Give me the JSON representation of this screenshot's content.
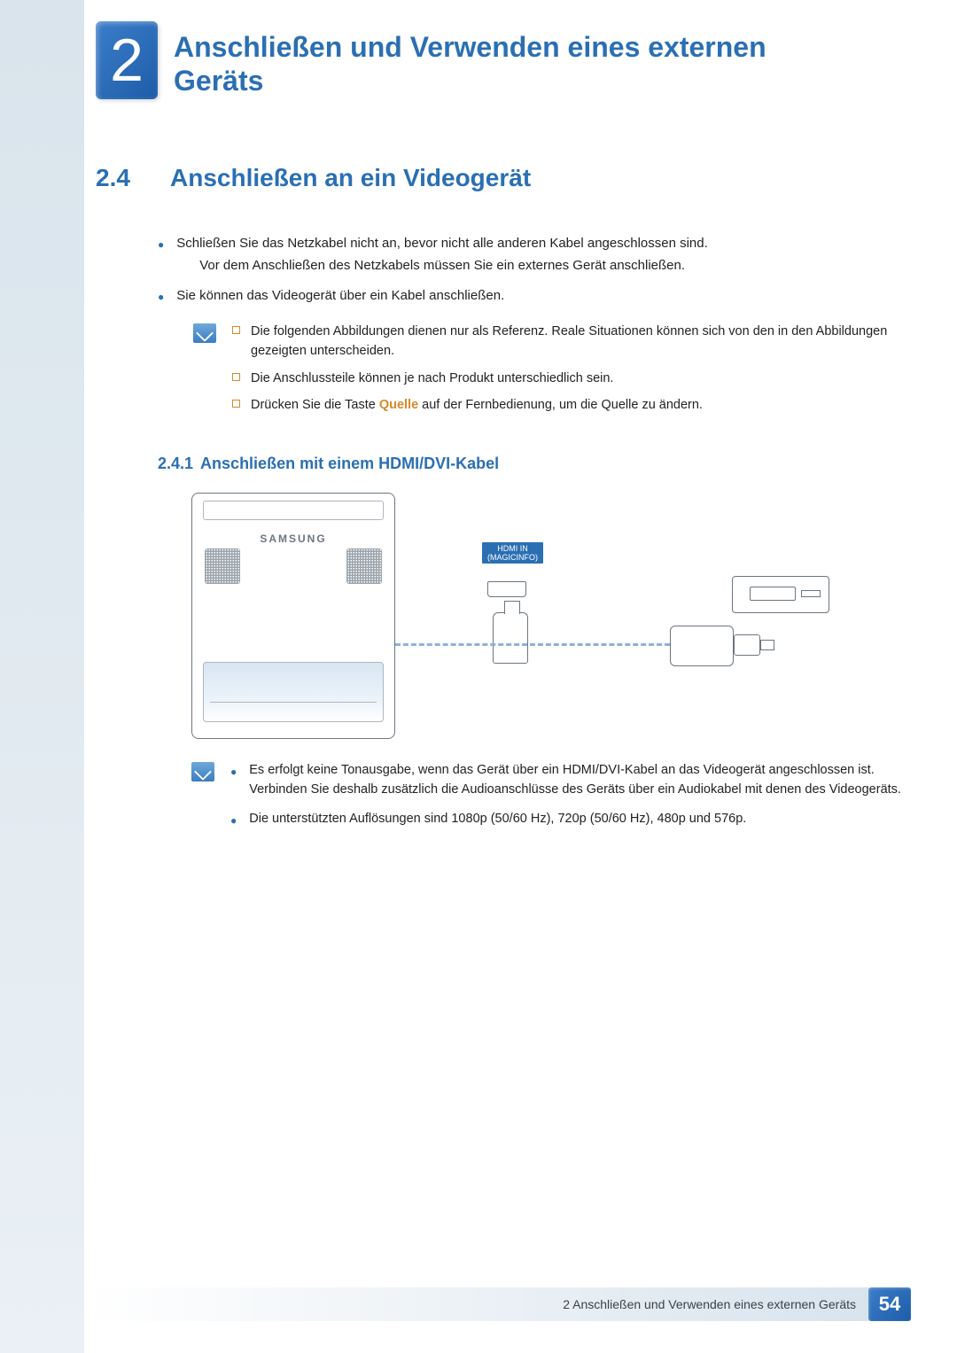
{
  "chapter": {
    "number": "2",
    "title": "Anschließen und Verwenden eines externen Geräts"
  },
  "section": {
    "number": "2.4",
    "title": "Anschließen an ein Videogerät"
  },
  "bullets": {
    "b1_line1": "Schließen Sie das Netzkabel nicht an, bevor nicht alle anderen Kabel angeschlossen sind.",
    "b1_line2": "Vor dem Anschließen des Netzkabels müssen Sie ein externes Gerät anschließen.",
    "b2": "Sie können das Videogerät über ein Kabel anschließen."
  },
  "notes1": {
    "n1": "Die folgenden Abbildungen dienen nur als Referenz. Reale Situationen können sich von den in den Abbildungen gezeigten unterscheiden.",
    "n2": "Die Anschlussteile können je nach Produkt unterschiedlich sein.",
    "n3_a": "Drücken Sie die Taste ",
    "n3_bold": "Quelle",
    "n3_b": " auf der Fernbedienung, um die Quelle zu ändern."
  },
  "subsection": {
    "number": "2.4.1",
    "title": "Anschließen mit einem HDMI/DVI-Kabel"
  },
  "figure": {
    "device_logo": "SAMSUNG",
    "port_label_line1": "HDMI IN",
    "port_label_line2": "(MAGICINFO)"
  },
  "notes2": {
    "n1": "Es erfolgt keine Tonausgabe, wenn das Gerät über ein HDMI/DVI-Kabel an das Videogerät angeschlossen ist. Verbinden Sie deshalb zusätzlich die Audioanschlüsse des Geräts über ein Audiokabel mit denen des Videogeräts.",
    "n2": "Die unterstützten Auflösungen sind 1080p (50/60 Hz), 720p (50/60 Hz), 480p und 576p."
  },
  "footer": {
    "text": "2 Anschließen und Verwenden eines externen Geräts",
    "page": "54"
  },
  "colors": {
    "accent": "#2b6fb3",
    "orange": "#d68a2a"
  }
}
